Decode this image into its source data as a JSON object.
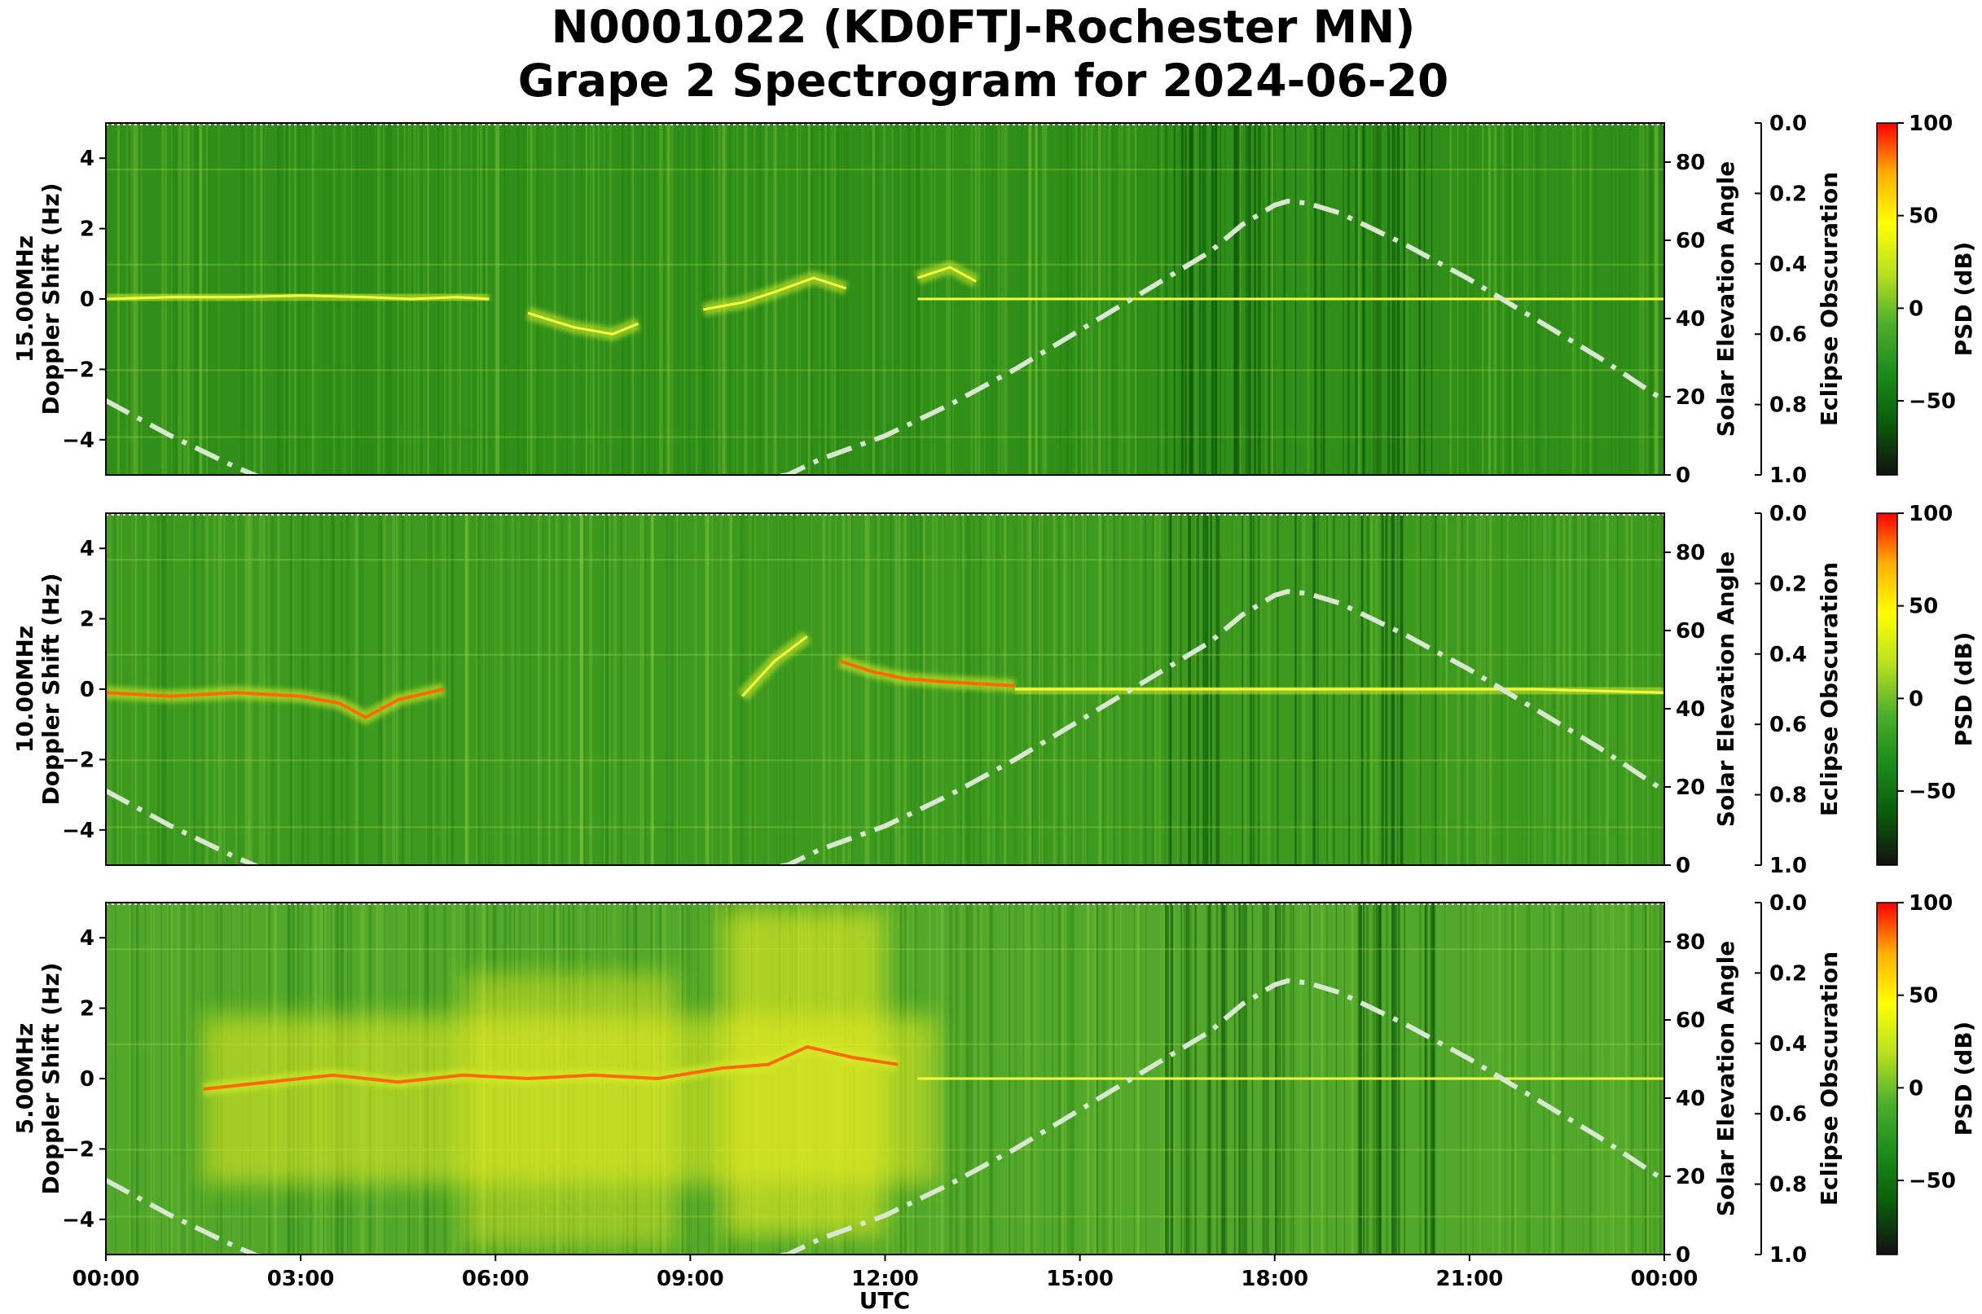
{
  "title_line1": "N0001022 (KD0FTJ-Rochester MN)",
  "title_line2": "Grape 2 Spectrogram for 2024-06-20",
  "chart_data": {
    "type": "heatmap",
    "xlabel": "UTC",
    "x_ticks": [
      "00:00",
      "03:00",
      "06:00",
      "09:00",
      "12:00",
      "15:00",
      "18:00",
      "21:00",
      "00:00"
    ],
    "xlim_hours": [
      0,
      24
    ],
    "y_ticks": [
      4,
      2,
      0,
      -2,
      -4
    ],
    "ylim": [
      -5,
      5
    ],
    "elevation_axis": {
      "label": "Solar Elevation Angle",
      "ticks": [
        80,
        60,
        40,
        20,
        0
      ],
      "range": [
        0,
        90
      ]
    },
    "eclipse_axis": {
      "label": "Eclipse Obscuration",
      "ticks": [
        "0.0",
        "0.2",
        "0.4",
        "0.6",
        "0.8",
        "1.0"
      ],
      "range": [
        0,
        1
      ]
    },
    "colorbar": {
      "label": "PSD (dB)",
      "ticks": [
        "100",
        "50",
        "0",
        "−50"
      ],
      "range": [
        -90,
        100
      ],
      "colors": [
        "#111111",
        "#0a5a0a",
        "#1a8c1a",
        "#4caf2a",
        "#b8e020",
        "#ffff00",
        "#ffb000",
        "#ff0000"
      ]
    },
    "solar_elevation_deg": [
      [
        0,
        19
      ],
      [
        1,
        10
      ],
      [
        2,
        2
      ],
      [
        3,
        -5
      ],
      [
        4,
        -11
      ],
      [
        5,
        -14
      ],
      [
        6,
        -14
      ],
      [
        7,
        -11
      ],
      [
        8,
        -6
      ],
      [
        9,
        -3
      ],
      [
        10,
        -1
      ],
      [
        10.5,
        0
      ],
      [
        11,
        4
      ],
      [
        12,
        10
      ],
      [
        13,
        18
      ],
      [
        14,
        27
      ],
      [
        15,
        37
      ],
      [
        16,
        47
      ],
      [
        17,
        57
      ],
      [
        17.5,
        64
      ],
      [
        18,
        69
      ],
      [
        18.2,
        70
      ],
      [
        18.5,
        69.5
      ],
      [
        19,
        67
      ],
      [
        20,
        59
      ],
      [
        21,
        50
      ],
      [
        22,
        40
      ],
      [
        23,
        30
      ],
      [
        24,
        19
      ]
    ],
    "panels": [
      {
        "ylabel_freq": "15.00MHz",
        "ylabel": "Doppler Shift (Hz)",
        "carrier_traces": [
          {
            "x": [
              0,
              1,
              2,
              3,
              4,
              4.7,
              5.4,
              5.9
            ],
            "y": [
              0,
              0.05,
              0.05,
              0.1,
              0.05,
              0,
              0.05,
              0
            ],
            "level": 1
          },
          {
            "x": [
              6.5,
              7.2,
              7.8,
              8.2
            ],
            "y": [
              -0.4,
              -0.8,
              -1.0,
              -0.7
            ],
            "level": 1
          },
          {
            "x": [
              9.2,
              9.8,
              10.3,
              10.9,
              11.4
            ],
            "y": [
              -0.3,
              -0.1,
              0.2,
              0.6,
              0.3
            ],
            "level": 1
          },
          {
            "x": [
              12.5,
              13.0,
              13.4
            ],
            "y": [
              0.6,
              0.9,
              0.5
            ],
            "level": 1
          },
          {
            "x": [
              12.5,
              15,
              18,
              21,
              24
            ],
            "y": [
              0,
              0,
              0,
              0,
              0
            ],
            "level": 1
          }
        ],
        "broadband_glow": [],
        "background_level": 0.0
      },
      {
        "ylabel_freq": "10.00MHz",
        "ylabel": "Doppler Shift (Hz)",
        "carrier_traces": [
          {
            "x": [
              0,
              1,
              2,
              3,
              3.6,
              4.0,
              4.5,
              5.2
            ],
            "y": [
              -0.1,
              -0.2,
              -0.1,
              -0.2,
              -0.4,
              -0.8,
              -0.3,
              0
            ],
            "level": 2
          },
          {
            "x": [
              9.8,
              10.3,
              10.8
            ],
            "y": [
              -0.2,
              0.8,
              1.5
            ],
            "level": 1
          },
          {
            "x": [
              11.3,
              11.8,
              12.3,
              13.0,
              14.0
            ],
            "y": [
              0.8,
              0.5,
              0.3,
              0.2,
              0.1
            ],
            "level": 2
          },
          {
            "x": [
              14,
              17,
              20,
              22,
              24
            ],
            "y": [
              0,
              0,
              0,
              0,
              -0.1
            ],
            "level": 1
          }
        ],
        "broadband_glow": [],
        "background_level": 0.15
      },
      {
        "ylabel_freq": "5.00MHz",
        "ylabel": "Doppler Shift (Hz)",
        "carrier_traces": [
          {
            "x": [
              1.5,
              2.5,
              3.5,
              4.5,
              5.5,
              6.5,
              7.5,
              8.5,
              9.5,
              10.2,
              10.8,
              11.5,
              12.2
            ],
            "y": [
              -0.3,
              -0.1,
              0.1,
              -0.1,
              0.1,
              0,
              0.1,
              0,
              0.3,
              0.4,
              0.9,
              0.6,
              0.4
            ],
            "level": 2
          },
          {
            "x": [
              12.5,
              16,
              19,
              22,
              24
            ],
            "y": [
              0,
              0,
              0,
              0,
              0
            ],
            "level": 1
          }
        ],
        "broadband_glow": [
          {
            "x0": 1.5,
            "x1": 12.8,
            "y0": -3.0,
            "y1": 1.8,
            "intensity": 0.55
          },
          {
            "x0": 9.5,
            "x1": 12.0,
            "y0": -4.5,
            "y1": 4.8,
            "intensity": 0.6
          },
          {
            "x0": 5.5,
            "x1": 8.8,
            "y0": -4.8,
            "y1": 3.0,
            "intensity": 0.45
          }
        ],
        "background_level": 0.3
      }
    ]
  }
}
